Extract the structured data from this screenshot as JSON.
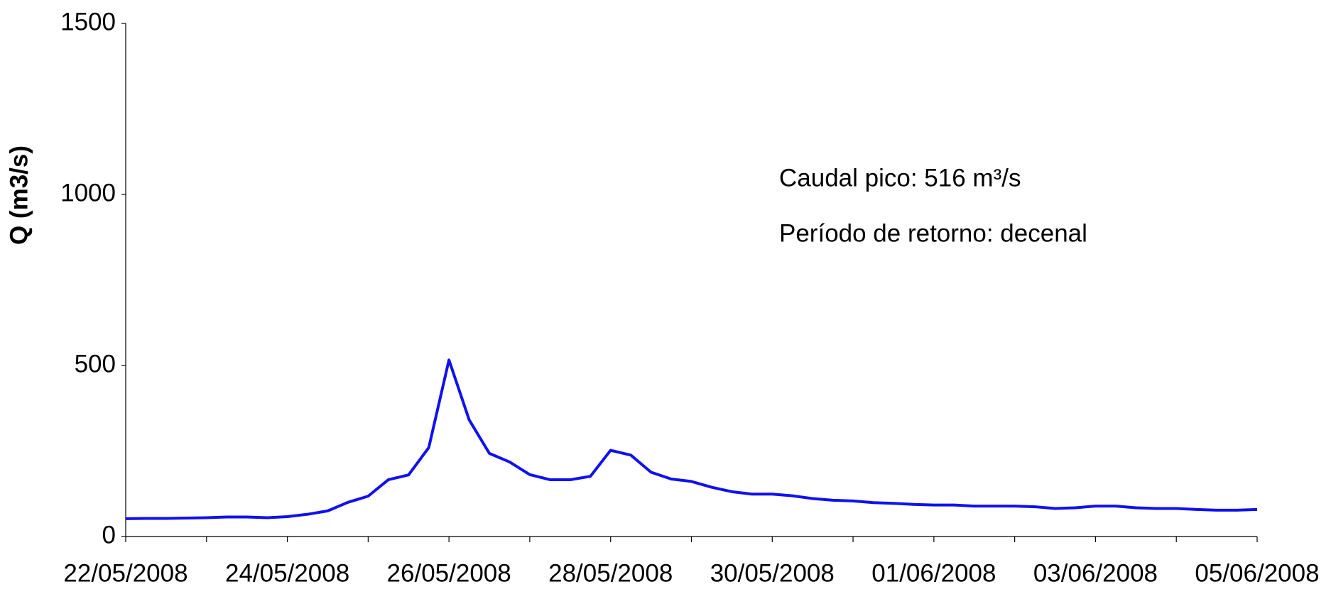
{
  "chart_data": {
    "type": "line",
    "y_label": "Q (m3/s)",
    "annotations": [
      "Caudal pico: 516 m³/s",
      "Período de retorno: decenal"
    ],
    "categories": [
      "22/05/2008",
      null,
      null,
      null,
      null,
      null,
      null,
      null,
      "24/05/2008",
      null,
      null,
      null,
      null,
      null,
      null,
      null,
      "26/05/2008",
      null,
      null,
      null,
      null,
      null,
      null,
      null,
      "28/05/2008",
      null,
      null,
      null,
      null,
      null,
      null,
      null,
      "30/05/2008",
      null,
      null,
      null,
      null,
      null,
      null,
      null,
      "01/06/2008",
      null,
      null,
      null,
      null,
      null,
      null,
      null,
      "03/06/2008",
      null,
      null,
      null,
      null,
      null,
      null,
      null,
      "05/06/2008"
    ],
    "series": [
      {
        "color": "#1010f0",
        "values": [
          52,
          53,
          53,
          54,
          55,
          57,
          57,
          55,
          58,
          65,
          75,
          100,
          118,
          166,
          180,
          260,
          516,
          341,
          243,
          218,
          181,
          166,
          166,
          176,
          252,
          238,
          188,
          168,
          161,
          144,
          131,
          124,
          124,
          119,
          111,
          106,
          104,
          99,
          97,
          94,
          92,
          92,
          89,
          89,
          89,
          87,
          82,
          84,
          89,
          89,
          84,
          82,
          82,
          79,
          77,
          77,
          79
        ]
      }
    ],
    "ylim": [
      0,
      1500
    ],
    "yticks": [
      0,
      500,
      1000,
      1500
    ],
    "grid": false
  }
}
